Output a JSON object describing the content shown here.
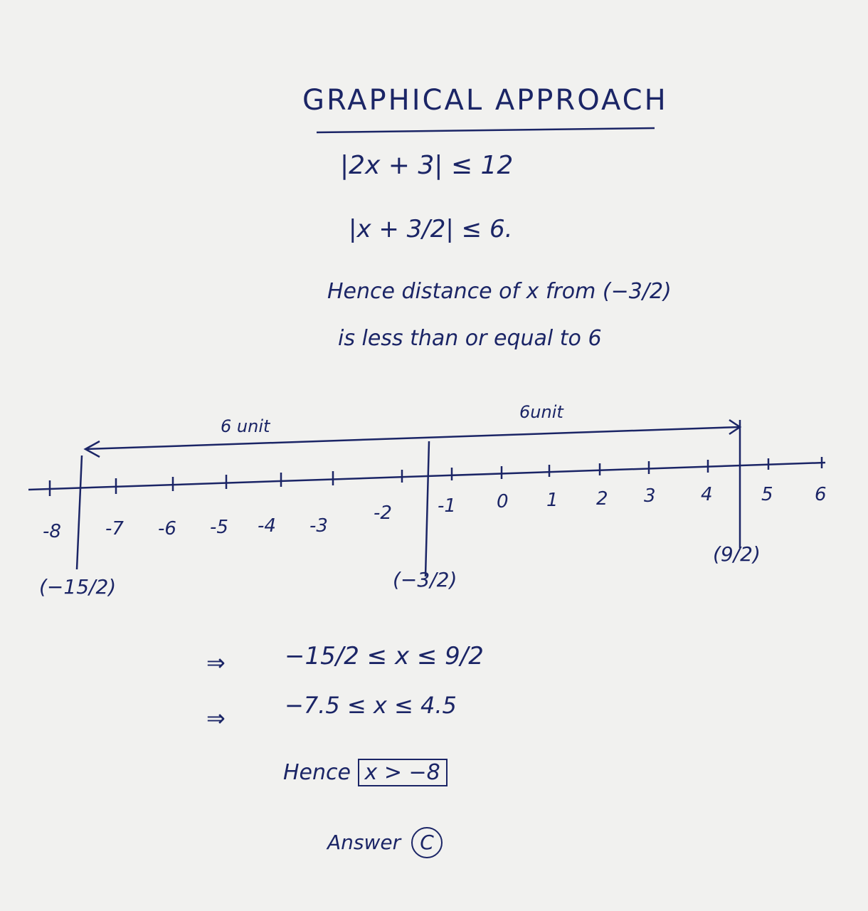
{
  "title": "GRAPHICAL APPROACH",
  "equations": [
    "|2x + 3| ≤ 12",
    "|x + 3/2| ≤ 6."
  ],
  "explanation": [
    "Hence distance of x from (−3/2)",
    "is less than or equal to 6"
  ],
  "number_line": {
    "left_span_label": "6 unit",
    "right_span_label": "6unit",
    "ticks": [
      "-8",
      "-7",
      "-6",
      "-5",
      "-4",
      "-3",
      "-2",
      "-1",
      "0",
      "1",
      "2",
      "3",
      "4",
      "5",
      "6"
    ],
    "markers": [
      "(−15/2)",
      "(−3/2)",
      "(9/2)"
    ]
  },
  "steps": [
    {
      "arrow": "⇒",
      "text": "−15/2 ≤ x ≤ 9/2"
    },
    {
      "arrow": "⇒",
      "text": "−7.5 ≤ x ≤ 4.5"
    }
  ],
  "conclusion": {
    "prefix": "Hence",
    "boxed": "x > −8"
  },
  "answer": {
    "label": "Answer",
    "choice": "C"
  },
  "ink_color": "#1b2566"
}
